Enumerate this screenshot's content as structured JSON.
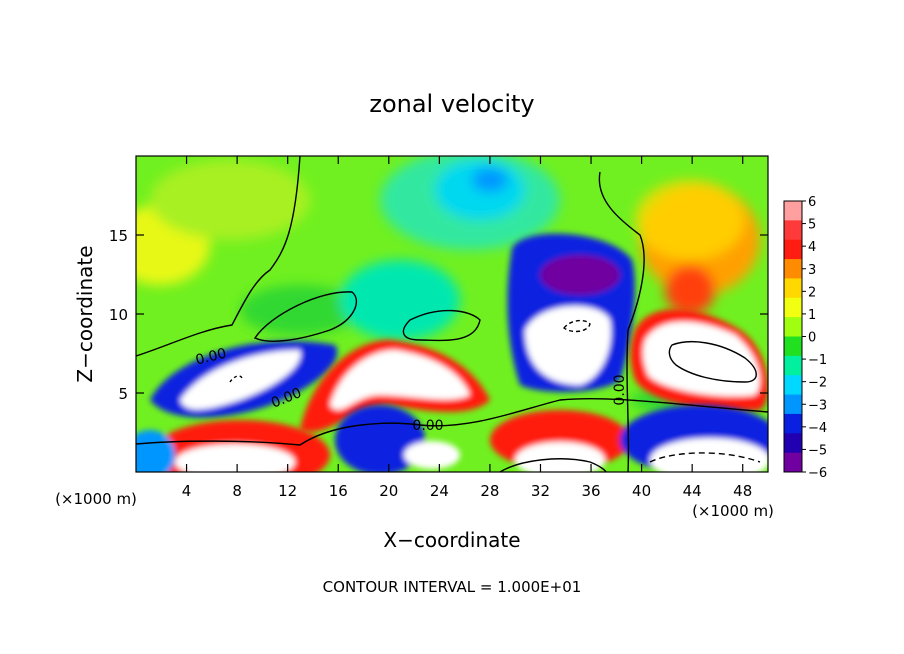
{
  "chart_data": {
    "type": "heatmap",
    "title": "zonal velocity",
    "xlabel": "X−coordinate",
    "ylabel": "Z−coordinate",
    "x_unit_left": "(×1000 m)",
    "x_unit_right": "(×1000 m)",
    "xlim": [
      0,
      50
    ],
    "ylim": [
      0,
      20
    ],
    "x_ticks": [
      4,
      8,
      12,
      16,
      20,
      24,
      28,
      32,
      36,
      40,
      44,
      48
    ],
    "y_ticks": [
      5,
      10,
      15
    ],
    "colorbar": {
      "min": -6,
      "max": 6,
      "labels": [
        "6",
        "5",
        "4",
        "3",
        "2",
        "1",
        "0",
        "−1",
        "−2",
        "−3",
        "−4",
        "−5",
        "−6"
      ],
      "colors": [
        "#ff9f9f",
        "#ff3a3a",
        "#ff1c10",
        "#ff8c00",
        "#ffd800",
        "#f2ff10",
        "#a0ff10",
        "#20e020",
        "#00f0a0",
        "#00d8ff",
        "#0096ff",
        "#0a20e0",
        "#2000b0",
        "#7000a0"
      ]
    },
    "contour_labels": [
      "0.00",
      "0.00",
      "0.00",
      "0.00"
    ],
    "footer": "CONTOUR INTERVAL = 1.000E+01"
  }
}
